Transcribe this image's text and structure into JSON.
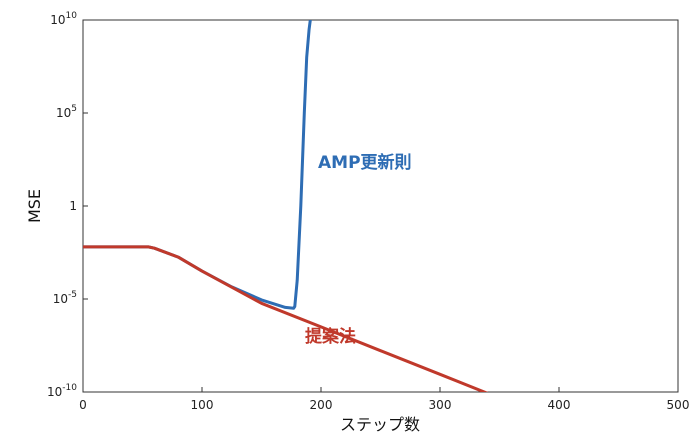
{
  "chart_data": {
    "type": "line",
    "xlabel": "ステップ数",
    "ylabel": "MSE",
    "xlim": [
      0,
      500
    ],
    "ylog": true,
    "ylim_exp": [
      -10,
      10
    ],
    "x_ticks": [
      0,
      100,
      200,
      300,
      400,
      500
    ],
    "y_ticks": [
      {
        "base": "10",
        "exp": "10",
        "value_exp": 10
      },
      {
        "base": "10",
        "exp": "5",
        "value_exp": 5
      },
      {
        "base": "1",
        "exp": "",
        "value_exp": 0
      },
      {
        "base": "10",
        "exp": "-5",
        "value_exp": -5
      },
      {
        "base": "10",
        "exp": "-10",
        "value_exp": -10
      }
    ],
    "grid": false,
    "series": [
      {
        "name": "AMP更新則",
        "color": "#2e6db4",
        "x": [
          0,
          55,
          60,
          80,
          100,
          125,
          150,
          170,
          177,
          178,
          180,
          183,
          186,
          188,
          190,
          191
        ],
        "logy": [
          -2.2,
          -2.2,
          -2.27,
          -2.75,
          -3.5,
          -4.35,
          -5.05,
          -5.45,
          -5.5,
          -5.4,
          -4,
          0,
          5,
          8,
          9.5,
          10
        ]
      },
      {
        "name": "提案法",
        "color": "#c0392b",
        "x": [
          0,
          55,
          60,
          80,
          100,
          150,
          200,
          250,
          300,
          350,
          400,
          406
        ],
        "logy": [
          -2.2,
          -2.2,
          -2.27,
          -2.75,
          -3.5,
          -5.23,
          -6.5,
          -7.78,
          -9.05,
          -10.33,
          -11.6,
          -11.75
        ]
      }
    ]
  },
  "labels": {
    "amp": "AMP更新則",
    "proposed": "提案法"
  }
}
